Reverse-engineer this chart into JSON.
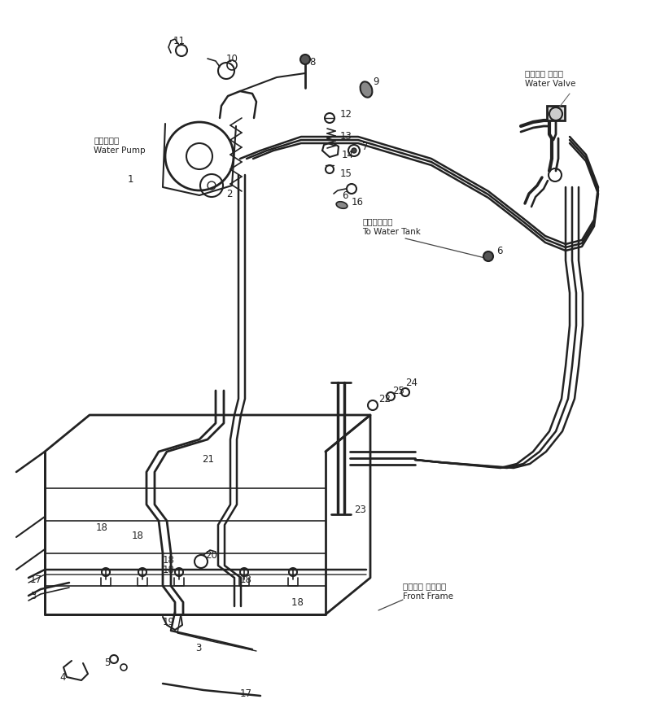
{
  "bg_color": "#ffffff",
  "line_color": "#222222",
  "labels": {
    "water_pump_jp": "散水ポンプ",
    "water_pump_en": "Water Pump",
    "water_valve_jp": "ウォータ バルブ",
    "water_valve_en": "Water Valve",
    "water_tank_jp": "散水タンクへ",
    "water_tank_en": "To Water Tank",
    "front_frame_jp": "フロント フレーム",
    "front_frame_en": "Front Frame"
  },
  "figsize": [
    7.95,
    8.86
  ],
  "dpi": 100
}
